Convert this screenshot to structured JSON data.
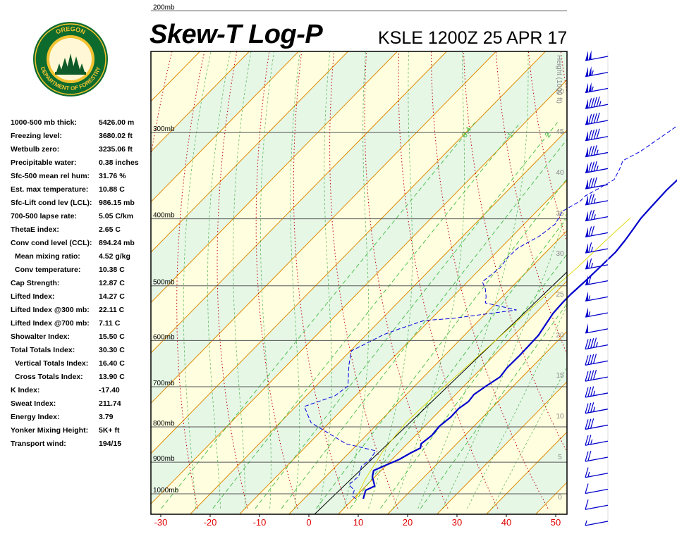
{
  "header": {
    "title": "Skew-T Log-P",
    "subtitle": "KSLE 1200Z 25 APR 17"
  },
  "logo": {
    "top_text": "OREGON",
    "bottom_text": "DEPARTMENT OF FORESTRY",
    "colors": {
      "ring": "#0d6b2e",
      "gold": "#f2c230",
      "tree": "#0f5a28"
    }
  },
  "stats": [
    {
      "label": "1000-500 mb thick:",
      "value": "5426.00 m",
      "indent": false
    },
    {
      "label": "Freezing level:",
      "value": "3680.02 ft",
      "indent": false
    },
    {
      "label": "Wetbulb zero:",
      "value": "3235.06 ft",
      "indent": false
    },
    {
      "label": "Precipitable water:",
      "value": "0.38 inches",
      "indent": false
    },
    {
      "label": "Sfc-500 mean rel hum:",
      "value": "31.76 %",
      "indent": false
    },
    {
      "label": "Est. max temperature:",
      "value": "10.88 C",
      "indent": false
    },
    {
      "label": "Sfc-Lift cond lev (LCL):",
      "value": "986.15 mb",
      "indent": false
    },
    {
      "label": "700-500 lapse rate:",
      "value": "5.05 C/km",
      "indent": false
    },
    {
      "label": "ThetaE index:",
      "value": "2.65 C",
      "indent": false
    },
    {
      "label": "Conv cond level (CCL):",
      "value": "894.24 mb",
      "indent": false
    },
    {
      "label": "Mean mixing ratio:",
      "value": "4.52 g/kg",
      "indent": true
    },
    {
      "label": "Conv temperature:",
      "value": "10.38 C",
      "indent": true
    },
    {
      "label": "Cap Strength:",
      "value": "12.87 C",
      "indent": false
    },
    {
      "label": "Lifted Index:",
      "value": "14.27 C",
      "indent": false
    },
    {
      "label": "Lifted Index @300 mb:",
      "value": "22.11 C",
      "indent": false
    },
    {
      "label": "Lifted Index @700 mb:",
      "value": "7.11 C",
      "indent": false
    },
    {
      "label": "Showalter Index:",
      "value": "15.50 C",
      "indent": false
    },
    {
      "label": "Total Totals Index:",
      "value": "30.30 C",
      "indent": false
    },
    {
      "label": "Vertical Totals Index:",
      "value": "16.40 C",
      "indent": true
    },
    {
      "label": "Cross Totals Index:",
      "value": "13.90 C",
      "indent": true
    },
    {
      "label": "K Index:",
      "value": "-17.40",
      "indent": false
    },
    {
      "label": "Sweat Index:",
      "value": "211.74",
      "indent": false
    },
    {
      "label": "Energy Index:",
      "value": "3.79",
      "indent": false
    },
    {
      "label": "Yonker Mixing Height:",
      "value": "5K+ ft",
      "indent": false
    },
    {
      "label": "Transport wind:",
      "value": "194/15",
      "indent": false
    }
  ],
  "chart_data": {
    "type": "line",
    "title": "Skew-T Log-P",
    "subtitle": "KSLE 1200Z 25 APR 17",
    "xlabel": "",
    "ylabel": "",
    "x_ticks": [
      "-30",
      "-20",
      "-10",
      "0",
      "10",
      "20",
      "30",
      "40",
      "50"
    ],
    "pressure_levels": [
      {
        "p": 1000,
        "label": "1000mb"
      },
      {
        "p": 900,
        "label": "900mb"
      },
      {
        "p": 800,
        "label": "800mb"
      },
      {
        "p": 700,
        "label": "700mb"
      },
      {
        "p": 600,
        "label": "600mb"
      },
      {
        "p": 500,
        "label": "500mb"
      },
      {
        "p": 400,
        "label": "400mb"
      },
      {
        "p": 300,
        "label": "300mb"
      },
      {
        "p": 200,
        "label": "200mb"
      }
    ],
    "height_axis": {
      "title": "Height (1000 ft)",
      "ticks": [
        "0",
        "5",
        "10",
        "15",
        "20",
        "25",
        "30",
        "35",
        "40",
        "45",
        "50"
      ]
    },
    "mixing_ratio_labels": [
      "0.4",
      "1",
      "2",
      "3",
      "5",
      "8"
    ],
    "series": [
      {
        "name": "Temperature",
        "color": "#0000cc",
        "points": [
          [
            12,
            708
          ],
          [
            10.8,
            696
          ],
          [
            11.8,
            690
          ],
          [
            9.5,
            677
          ],
          [
            8.5,
            668
          ],
          [
            9.6,
            662
          ],
          [
            11.5,
            652
          ],
          [
            12.5,
            643
          ],
          [
            13.5,
            636
          ],
          [
            12.8,
            630
          ],
          [
            13.3,
            618
          ],
          [
            13,
            605
          ],
          [
            13.5,
            592
          ],
          [
            13.4,
            580
          ],
          [
            14,
            570
          ],
          [
            13.7,
            560
          ],
          [
            14.5,
            548
          ],
          [
            15.5,
            535
          ],
          [
            15.1,
            522
          ],
          [
            15.2,
            505
          ],
          [
            15.1,
            490
          ],
          [
            15,
            476
          ],
          [
            14.2,
            458
          ],
          [
            13.6,
            445
          ],
          [
            13.4,
            430
          ],
          [
            13.4,
            418
          ],
          [
            13.7,
            400
          ],
          [
            13.9,
            380
          ],
          [
            14.1,
            358
          ],
          [
            13.7,
            342
          ],
          [
            13.2,
            328
          ],
          [
            12.5,
            310
          ],
          [
            12.3,
            292
          ],
          [
            12.1,
            270
          ],
          [
            12.3,
            252
          ],
          [
            13.2,
            240
          ],
          [
            14.4,
            228
          ],
          [
            14.6,
            206
          ],
          [
            14.6,
            190
          ],
          [
            19.5,
            172
          ],
          [
            25.8,
            152
          ],
          [
            25.1,
            135
          ],
          [
            26.5,
            128
          ],
          [
            28.5,
            118
          ],
          [
            29.1,
            105
          ],
          [
            30.2,
            96
          ]
        ]
      },
      {
        "name": "Dewpoint",
        "color": "#0000dd",
        "points": [
          [
            10.5,
            708
          ],
          [
            9.2,
            704
          ],
          [
            8.5,
            696
          ],
          [
            6.3,
            688
          ],
          [
            6.6,
            676
          ],
          [
            5.2,
            662
          ],
          [
            5.6,
            652
          ],
          [
            5.0,
            640
          ],
          [
            -2.4,
            630
          ],
          [
            -13.7,
            600
          ],
          [
            -18.3,
            577
          ],
          [
            -14.2,
            562
          ],
          [
            -13.5,
            548
          ],
          [
            -17.5,
            518
          ],
          [
            -19.8,
            498
          ],
          [
            -18.6,
            490
          ],
          [
            -16.5,
            475
          ],
          [
            -14.5,
            467
          ],
          [
            -11.1,
            455
          ],
          [
            -5.7,
            452
          ],
          [
            5.5,
            440
          ],
          [
            -2.2,
            430
          ],
          [
            -3.3,
            421
          ],
          [
            -5.0,
            410
          ],
          [
            -7.0,
            400
          ],
          [
            -6.2,
            380
          ],
          [
            -6.7,
            365
          ],
          [
            -6.5,
            352
          ],
          [
            -4.5,
            335
          ],
          [
            -3.7,
            318
          ],
          [
            -4.8,
            300
          ],
          [
            -3.2,
            285
          ],
          [
            -3.2,
            278
          ],
          [
            -2.0,
            268
          ],
          [
            -0.6,
            255
          ],
          [
            -1.6,
            240
          ],
          [
            -2.6,
            228
          ],
          [
            -0.9,
            215
          ],
          [
            0.1,
            200
          ],
          [
            1.4,
            180
          ],
          [
            5.5,
            152
          ],
          [
            7.4,
            130
          ],
          [
            8.1,
            108
          ],
          [
            12.4,
            90
          ],
          [
            16.5,
            78
          ]
        ]
      },
      {
        "name": "Parcel",
        "color": "#e0d800",
        "points": [
          [
            10.5,
            708
          ],
          [
            8.5,
            680
          ],
          [
            6.5,
            640
          ],
          [
            5.5,
            600
          ],
          [
            6.0,
            555
          ],
          [
            6.5,
            530
          ],
          [
            7.0,
            500
          ],
          [
            7.8,
            460
          ],
          [
            8.5,
            420
          ],
          [
            9.4,
            380
          ],
          [
            9.8,
            340
          ],
          [
            10.3,
            310
          ]
        ]
      }
    ],
    "wind_barbs_speeds_kt": [
      100,
      105,
      105,
      95,
      90,
      90,
      85,
      85,
      80,
      75,
      75,
      70,
      65,
      65,
      60,
      55,
      55,
      50,
      45,
      40,
      40,
      35,
      35,
      30,
      25,
      20,
      15,
      10,
      10,
      5
    ],
    "background": {
      "stable_color": "#ffffe0",
      "unstable_color": "#e6f7e6",
      "isotherm_color": "#e08a00",
      "dry_adiabat_color": "#c00000",
      "moist_adiabat_color": "#008800",
      "mixing_ratio_color": "#44bb44"
    }
  }
}
